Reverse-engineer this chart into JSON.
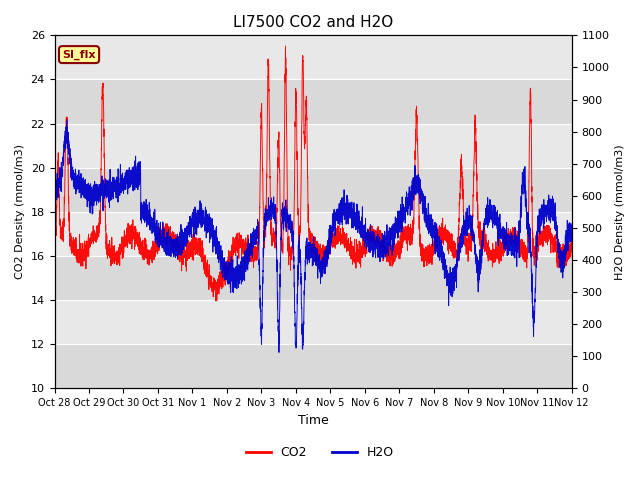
{
  "title": "LI7500 CO2 and H2O",
  "xlabel": "Time",
  "ylabel_left": "CO2 Density (mmol/m3)",
  "ylabel_right": "H2O Density (mmol/m3)",
  "ylim_left": [
    10,
    26
  ],
  "ylim_right": [
    0,
    1100
  ],
  "co2_color": "#FF0000",
  "h2o_color": "#0000CC",
  "plot_bg_color": "#E8E8E8",
  "stripe_color": "#D0D0D0",
  "annotation_text": "SI_flx",
  "annotation_color": "#8B0000",
  "annotation_bg": "#FFFF99",
  "xtick_labels": [
    "Oct 28",
    "Oct 29",
    "Oct 30",
    "Oct 31",
    "Nov 1",
    "Nov 2",
    "Nov 3",
    "Nov 4",
    "Nov 5",
    "Nov 6",
    "Nov 7",
    "Nov 8",
    "Nov 9",
    "Nov 10",
    "Nov 11",
    "Nov 12"
  ],
  "legend_co2": "CO2",
  "legend_h2o": "H2O",
  "num_days": 15,
  "seed": 42
}
